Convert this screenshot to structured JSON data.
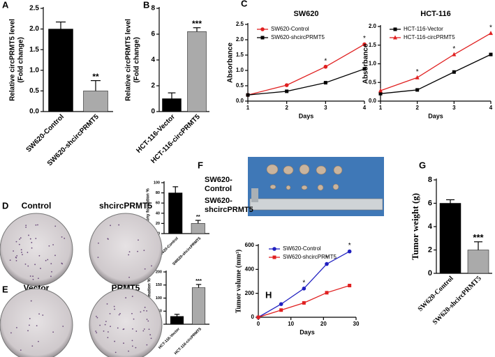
{
  "chart_data": [
    {
      "type": "bar",
      "panel": "A",
      "ylabel": [
        "Relative circPRMT5 level",
        "(Fold change)"
      ],
      "categories": [
        "SW620-Control",
        "SW620-shcircPRMT5"
      ],
      "values": [
        2.0,
        0.5
      ],
      "errors": [
        0.17,
        0.25
      ],
      "colors": [
        "#000000",
        "#aaaaaa"
      ],
      "significance": [
        null,
        "**"
      ],
      "ylim": [
        0,
        2.5
      ],
      "yticks": [
        {
          "value": 0,
          "label": "0.0"
        },
        0.5,
        {
          "value": 1,
          "label": "1.0"
        },
        1.5,
        {
          "value": 2,
          "label": "2.0"
        },
        2.5
      ]
    },
    {
      "type": "bar",
      "panel": "B",
      "ylabel": [
        "Relative circPRMT5 level",
        "(Fold change)"
      ],
      "categories": [
        "HCT-116-Vector",
        "HCT-116-circPRMT5"
      ],
      "values": [
        1.0,
        6.2
      ],
      "errors": [
        0.45,
        0.3
      ],
      "colors": [
        "#000000",
        "#aaaaaa"
      ],
      "significance": [
        null,
        "***"
      ],
      "ylim": [
        0,
        8
      ],
      "yticks": [
        0,
        2,
        4,
        6,
        8
      ]
    },
    {
      "type": "line",
      "panel": "C",
      "title": "SW620",
      "xlabel": "Days",
      "ylabel": [
        "Absorbance"
      ],
      "x": [
        1,
        2,
        3,
        4
      ],
      "xlim": [
        1,
        4
      ],
      "xticks": [
        1,
        2,
        3,
        4
      ],
      "series": [
        {
          "name": "SW620-Control",
          "color": "#e02020",
          "marker": "circle",
          "values": [
            0.2,
            0.52,
            1.12,
            1.85
          ]
        },
        {
          "name": "SW620-shcircPRMT5",
          "color": "#000000",
          "marker": "square",
          "values": [
            0.2,
            0.32,
            0.6,
            1.05
          ]
        }
      ],
      "significance": [
        null,
        null,
        "*",
        "*"
      ],
      "ylim": [
        0,
        2.5
      ],
      "yticks": [
        {
          "value": 0,
          "label": "0.0"
        },
        0.5,
        {
          "value": 1,
          "label": "1.0"
        },
        1.5,
        {
          "value": 2,
          "label": "2.0"
        },
        2.5
      ]
    },
    {
      "type": "line",
      "title": "HCT-116",
      "xlabel": "Days",
      "ylabel": [
        "Absorbance"
      ],
      "x": [
        1,
        2,
        3,
        4
      ],
      "xlim": [
        1,
        4
      ],
      "xticks": [
        1,
        2,
        3,
        4
      ],
      "series": [
        {
          "name": "HCT-116-Vector",
          "color": "#000000",
          "marker": "square",
          "values": [
            0.2,
            0.3,
            0.78,
            1.25
          ]
        },
        {
          "name": "HCT-116-circPRMT5",
          "color": "#e02020",
          "marker": "triangle",
          "values": [
            0.28,
            0.63,
            1.25,
            1.82
          ]
        }
      ],
      "significance": [
        null,
        "*",
        "*",
        "*"
      ],
      "ylim": [
        0,
        2.0
      ],
      "yticks": [
        {
          "value": 0,
          "label": "0.0"
        },
        0.5,
        {
          "value": 1,
          "label": "1.0"
        },
        1.5,
        {
          "value": 2,
          "label": "2.0"
        }
      ]
    },
    {
      "type": "bar",
      "panel": "D",
      "plate_labels": [
        "Control",
        "shcircPRMT5"
      ],
      "ylabel": [
        "Colony formation %"
      ],
      "categories": [
        "SW620-Control",
        "SW620-shcircPRMT5"
      ],
      "values": [
        80,
        20
      ],
      "errors": [
        12,
        6
      ],
      "colors": [
        "#000000",
        "#aaaaaa"
      ],
      "significance": [
        null,
        "**"
      ],
      "ylim": [
        0,
        100
      ],
      "yticks": [
        0,
        20,
        40,
        60,
        80,
        100
      ]
    },
    {
      "type": "bar",
      "panel": "E",
      "plate_labels": [
        "Vector",
        "PRMT5"
      ],
      "ylabel": [
        "Colony formation %"
      ],
      "categories": [
        "HCT-116-Vector",
        "HCT-116-circPRMT5"
      ],
      "values": [
        30,
        140
      ],
      "errors": [
        8,
        12
      ],
      "colors": [
        "#000000",
        "#aaaaaa"
      ],
      "significance": [
        null,
        "***"
      ],
      "ylim": [
        0,
        200
      ],
      "yticks": [
        0,
        50,
        100,
        150,
        200
      ]
    },
    {
      "type": "bar",
      "panel": "G",
      "ylabel": [
        "Tumor weight (g)"
      ],
      "categories": [
        "SW620-Control",
        "SW620-shcircPRMT5"
      ],
      "values": [
        6.0,
        2.0
      ],
      "errors": [
        0.3,
        0.7
      ],
      "colors": [
        "#000000",
        "#aaaaaa"
      ],
      "significance": [
        null,
        "***"
      ],
      "ylim": [
        0,
        8
      ],
      "yticks": [
        0,
        2,
        4,
        6,
        8
      ]
    },
    {
      "type": "line",
      "panel": "H",
      "xlabel": "Days",
      "ylabel": [
        "Tumor volume (mm³)"
      ],
      "x": [
        0,
        7,
        14,
        21,
        28
      ],
      "xlim": [
        0,
        30
      ],
      "xticks": [
        0,
        10,
        20,
        30
      ],
      "series": [
        {
          "name": "SW620-Control",
          "color": "#2020c0",
          "marker": "circle",
          "values": [
            0,
            110,
            240,
            445,
            550
          ]
        },
        {
          "name": "SW620-shcircPRMT5",
          "color": "#e02020",
          "marker": "square",
          "values": [
            0,
            60,
            120,
            205,
            265
          ]
        }
      ],
      "significance": [
        null,
        null,
        "*",
        "*",
        "*"
      ],
      "ylim": [
        0,
        600
      ],
      "yticks": [
        0,
        200,
        400,
        600
      ]
    }
  ],
  "photo": {
    "panel": "F",
    "row_labels": [
      [
        "SW620-",
        "Control"
      ],
      [
        "SW620-",
        "shcircPRMT5"
      ]
    ]
  }
}
